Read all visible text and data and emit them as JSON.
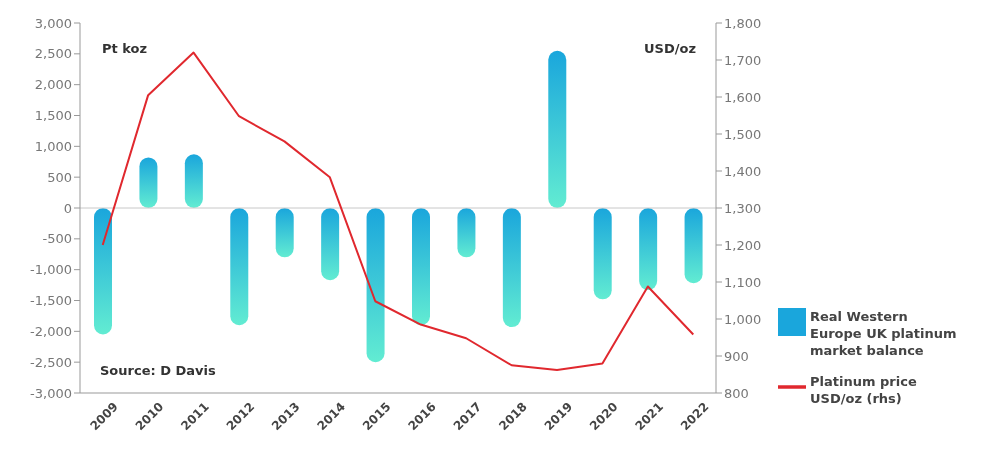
{
  "chart_data": {
    "type": "bar",
    "categories": [
      "2009",
      "2010",
      "2011",
      "2012",
      "2013",
      "2014",
      "2015",
      "2016",
      "2017",
      "2018",
      "2019",
      "2020",
      "2021",
      "2022"
    ],
    "series": [
      {
        "name": "Real Western Europe UK platinum market balance",
        "color": "#1aa6dc",
        "values": [
          -2050,
          820,
          870,
          -1900,
          -800,
          -1170,
          -2500,
          -1900,
          -800,
          -1930,
          2550,
          -1480,
          -1330,
          -1220
        ]
      },
      {
        "name": "Platinum price USD/oz (rhs)",
        "type": "line",
        "axis": "y2",
        "color": "#e0282e",
        "values": [
          1200,
          1605,
          1720,
          1548,
          1480,
          1383,
          1048,
          985,
          948,
          875,
          862,
          880,
          1088,
          958
        ]
      }
    ],
    "ylabel": "Pt koz",
    "y2label": "USD/oz",
    "ylim": [
      -3000,
      3000
    ],
    "yticks": [
      {
        "value": -3000,
        "label": "-3,000"
      },
      {
        "value": -2500,
        "label": "-2,500"
      },
      {
        "value": -2000,
        "label": "-2,000"
      },
      {
        "value": -1500,
        "label": "-1,500"
      },
      {
        "value": -1000,
        "label": "-1,000"
      },
      -500,
      0,
      500,
      {
        "value": 1000,
        "label": "1,000"
      },
      {
        "value": 1500,
        "label": "1,500"
      },
      {
        "value": 2000,
        "label": "2,000"
      },
      {
        "value": 2500,
        "label": "2,500"
      },
      {
        "value": 3000,
        "label": "3,000"
      }
    ],
    "y2lim": [
      800,
      1800
    ],
    "y2ticks": [
      800,
      900,
      {
        "value": 1000,
        "label": "1,000"
      },
      {
        "value": 1100,
        "label": "1,100"
      },
      {
        "value": 1200,
        "label": "1,200"
      },
      {
        "value": 1300,
        "label": "1,300"
      },
      {
        "value": 1400,
        "label": "1,400"
      },
      {
        "value": 1500,
        "label": "1,500"
      },
      {
        "value": 1600,
        "label": "1,600"
      },
      {
        "value": 1700,
        "label": "1,700"
      },
      {
        "value": 1800,
        "label": "1,800"
      }
    ],
    "ref_lines": [
      {
        "axis": "y",
        "value": 0,
        "color": "#c8c8c8"
      }
    ],
    "annotations": [
      "Source: D Davis"
    ],
    "legend": "right",
    "grid": false,
    "marker": "none"
  }
}
